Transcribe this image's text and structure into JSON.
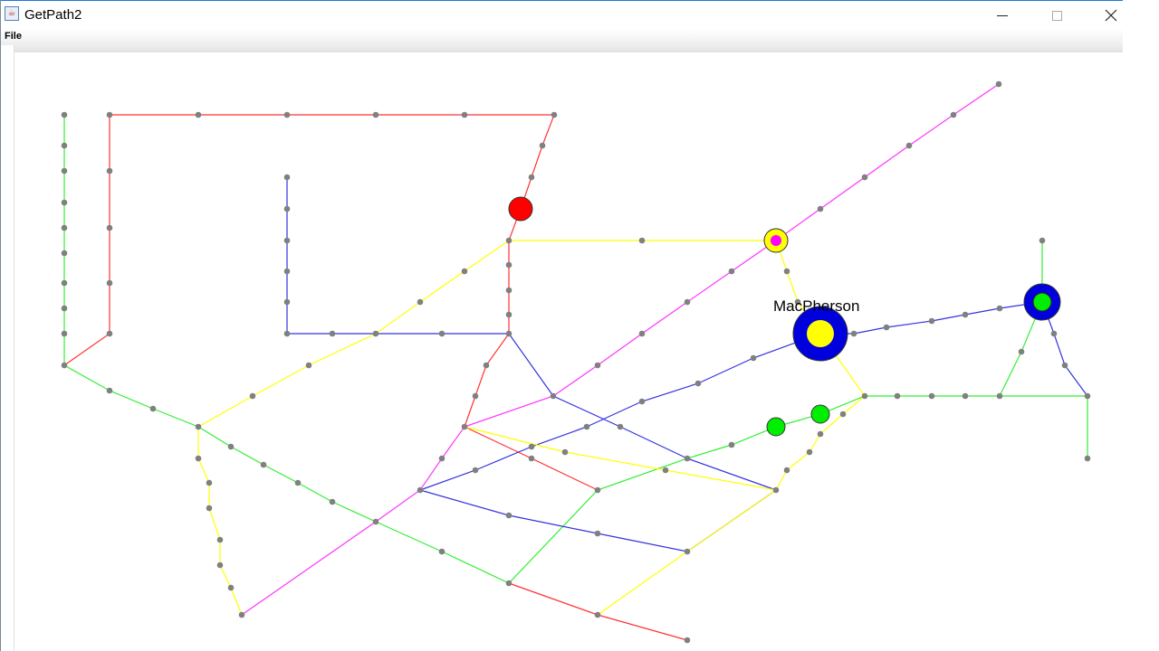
{
  "window": {
    "title": "GetPath2",
    "icon": "java-cup-icon",
    "controls": {
      "minimize": "minimize-icon",
      "maximize": "maximize-icon",
      "close": "close-icon"
    }
  },
  "menubar": {
    "items": [
      {
        "label": "File"
      }
    ]
  },
  "map": {
    "label": "MacPherson",
    "colors": {
      "red": "#ff3333",
      "green": "#33ee33",
      "blue": "#3333dd",
      "yellow": "#ffff00",
      "magenta": "#ff33ff",
      "node": "#808080"
    },
    "markers": [
      {
        "id": "red-marker",
        "fill": "#ff0000",
        "ring": null
      },
      {
        "id": "magenta-yellow-marker",
        "fill": "#ff00ff",
        "ring": "#ffff00"
      },
      {
        "id": "macpherson-marker",
        "fill": "#ffff00",
        "ring": "#0000dd"
      },
      {
        "id": "blue-green-marker",
        "fill": "#00ee00",
        "ring": "#0000dd"
      },
      {
        "id": "green-marker-a",
        "fill": "#00ee00",
        "ring": null
      },
      {
        "id": "green-marker-b",
        "fill": "#00ee00",
        "ring": null
      }
    ]
  }
}
